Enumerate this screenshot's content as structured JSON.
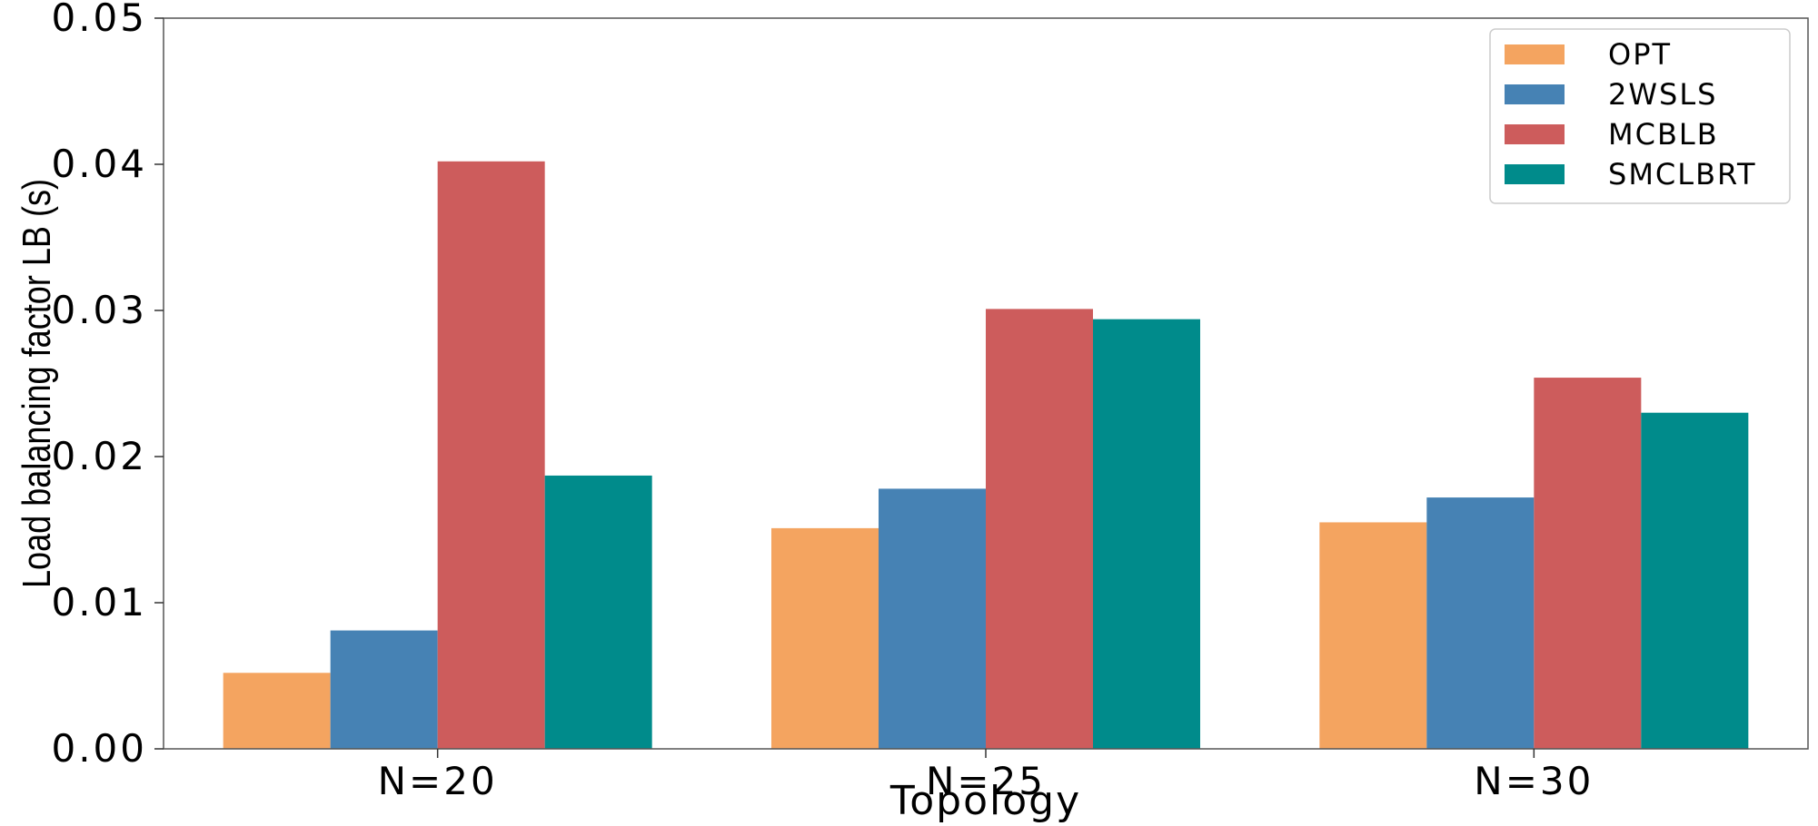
{
  "chart_data": {
    "type": "bar",
    "xlabel": "Topology",
    "ylabel": "Load balancing factor LB (s)",
    "categories": [
      "N=20",
      "N=25",
      "N=30"
    ],
    "ylim": [
      0,
      0.05
    ],
    "yticks": [
      "0.00",
      "0.01",
      "0.02",
      "0.03",
      "0.04",
      "0.05"
    ],
    "legend_position": "top-right",
    "grid": false,
    "series": [
      {
        "name": "OPT",
        "color": "#F4A460",
        "values": [
          0.0052,
          0.0151,
          0.0155
        ]
      },
      {
        "name": "2WSLS",
        "color": "#4682B4",
        "values": [
          0.0081,
          0.0178,
          0.0172
        ]
      },
      {
        "name": "MCBLB",
        "color": "#CD5C5C",
        "values": [
          0.0402,
          0.0301,
          0.0254
        ]
      },
      {
        "name": "SMCLBRT",
        "color": "#008B8B",
        "values": [
          0.0187,
          0.0294,
          0.023
        ]
      }
    ]
  }
}
